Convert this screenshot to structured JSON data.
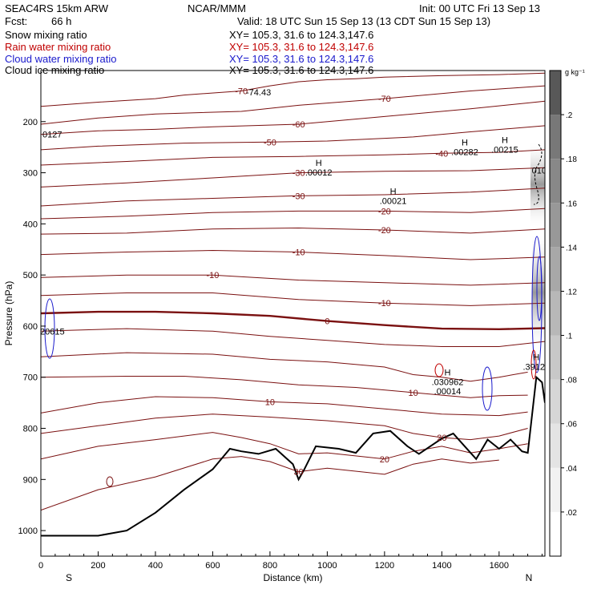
{
  "header": {
    "model": "SEAC4RS 15km ARW",
    "org": "NCAR/MMM",
    "init": "Init: 00 UTC Fri 13 Sep 13",
    "fcst_label": "Fcst:",
    "fcst_value": "66 h",
    "valid": "Valid: 18 UTC Sun 15 Sep 13 (13 CDT Sun 15 Sep 13)",
    "fields": [
      {
        "name": "Snow mixing ratio",
        "xy": "XY= 105.3, 31.6 to 124.3,147.6",
        "color": "#000000"
      },
      {
        "name": "Rain water mixing ratio",
        "xy": "XY= 105.3, 31.6 to 124.3,147.6",
        "color": "#c00000"
      },
      {
        "name": "Cloud water mixing ratio",
        "xy": "XY= 105.3, 31.6 to 124.3,147.6",
        "color": "#1a1acc"
      },
      {
        "name": "Cloud ice mixing ratio",
        "xy": "XY= 105.3, 31.6 to 124.3,147.6",
        "color": "#000000"
      }
    ]
  },
  "chart_data": {
    "type": "line",
    "xlabel": "Distance (km)",
    "ylabel": "Pressure (hPa)",
    "xlim": [
      0,
      1760
    ],
    "ylim": [
      1050,
      100
    ],
    "x_ticks": [
      0,
      200,
      400,
      600,
      800,
      1000,
      1200,
      1400,
      1600
    ],
    "y_ticks": [
      200,
      300,
      400,
      500,
      600,
      700,
      800,
      900,
      1000
    ],
    "endpoints": {
      "left": "S",
      "right": "N"
    },
    "colorbar": {
      "units": "g kg⁻¹",
      "ticks": [
        ".02",
        ".04",
        ".06",
        ".08",
        ".1",
        ".12",
        ".14",
        ".16",
        ".18",
        ".2"
      ],
      "colors": [
        "#ffffff",
        "#f2f2f2",
        "#e4e4e4",
        "#d6d6d6",
        "#c8c8c8",
        "#b8b8b8",
        "#a8a8a8",
        "#989898",
        "#888888",
        "#787878",
        "#585858"
      ]
    },
    "temperature_contours": [
      {
        "label": "-70",
        "points": [
          [
            0,
            170
          ],
          [
            200,
            162
          ],
          [
            400,
            155
          ],
          [
            500,
            148
          ],
          [
            700,
            140
          ],
          [
            800,
            130
          ],
          [
            900,
            122
          ],
          [
            1000,
            118
          ],
          [
            1100,
            116
          ],
          [
            1200,
            113
          ],
          [
            1400,
            110
          ],
          [
            1600,
            108
          ],
          [
            1760,
            105
          ]
        ]
      },
      {
        "label": "-70",
        "points": [
          [
            0,
            205
          ],
          [
            200,
            193
          ],
          [
            400,
            185
          ],
          [
            700,
            180
          ],
          [
            900,
            168
          ],
          [
            1200,
            155
          ],
          [
            1500,
            140
          ],
          [
            1760,
            130
          ]
        ]
      },
      {
        "label": "-60",
        "points": [
          [
            0,
            225
          ],
          [
            200,
            218
          ],
          [
            400,
            215
          ],
          [
            600,
            210
          ],
          [
            900,
            205
          ],
          [
            1200,
            190
          ],
          [
            1500,
            175
          ],
          [
            1760,
            160
          ]
        ]
      },
      {
        "label": "-50",
        "points": [
          [
            0,
            255
          ],
          [
            200,
            248
          ],
          [
            500,
            242
          ],
          [
            800,
            240
          ],
          [
            1000,
            238
          ],
          [
            1300,
            230
          ],
          [
            1500,
            220
          ],
          [
            1760,
            208
          ]
        ]
      },
      {
        "label": "-40",
        "points": [
          [
            0,
            285
          ],
          [
            300,
            278
          ],
          [
            600,
            270
          ],
          [
            900,
            268
          ],
          [
            1200,
            265
          ],
          [
            1400,
            262
          ],
          [
            1600,
            260
          ],
          [
            1760,
            255
          ]
        ]
      },
      {
        "label": "-30",
        "points": [
          [
            0,
            328
          ],
          [
            300,
            320
          ],
          [
            600,
            310
          ],
          [
            900,
            300
          ],
          [
            1200,
            297
          ],
          [
            1500,
            296
          ],
          [
            1760,
            290
          ]
        ]
      },
      {
        "label": "-30",
        "points": [
          [
            0,
            365
          ],
          [
            300,
            355
          ],
          [
            600,
            350
          ],
          [
            900,
            345
          ],
          [
            1200,
            343
          ],
          [
            1500,
            338
          ],
          [
            1760,
            330
          ]
        ]
      },
      {
        "label": "-20",
        "points": [
          [
            0,
            390
          ],
          [
            300,
            385
          ],
          [
            600,
            378
          ],
          [
            900,
            375
          ],
          [
            1200,
            375
          ],
          [
            1500,
            378
          ],
          [
            1760,
            370
          ]
        ]
      },
      {
        "label": "-20",
        "points": [
          [
            0,
            420
          ],
          [
            300,
            418
          ],
          [
            600,
            410
          ],
          [
            900,
            408
          ],
          [
            1200,
            412
          ],
          [
            1500,
            418
          ],
          [
            1760,
            410
          ]
        ]
      },
      {
        "label": "-10",
        "points": [
          [
            0,
            460
          ],
          [
            300,
            455
          ],
          [
            600,
            452
          ],
          [
            900,
            455
          ],
          [
            1200,
            462
          ],
          [
            1500,
            470
          ],
          [
            1760,
            465
          ]
        ]
      },
      {
        "label": "-10",
        "points": [
          [
            0,
            505
          ],
          [
            300,
            500
          ],
          [
            600,
            500
          ],
          [
            900,
            510
          ],
          [
            1200,
            515
          ],
          [
            1500,
            520
          ],
          [
            1760,
            515
          ]
        ]
      },
      {
        "label": "-10",
        "points": [
          [
            0,
            540
          ],
          [
            300,
            535
          ],
          [
            600,
            535
          ],
          [
            900,
            548
          ],
          [
            1200,
            555
          ],
          [
            1500,
            560
          ],
          [
            1760,
            555
          ]
        ]
      },
      {
        "label": "0",
        "bold": true,
        "points": [
          [
            0,
            575
          ],
          [
            200,
            572
          ],
          [
            400,
            572
          ],
          [
            600,
            575
          ],
          [
            800,
            580
          ],
          [
            1000,
            590
          ],
          [
            1200,
            598
          ],
          [
            1400,
            605
          ],
          [
            1600,
            606
          ],
          [
            1760,
            604
          ]
        ]
      },
      {
        "label": "",
        "points": [
          [
            0,
            610
          ],
          [
            300,
            605
          ],
          [
            600,
            610
          ],
          [
            800,
            620
          ],
          [
            1000,
            628
          ],
          [
            1200,
            636
          ],
          [
            1400,
            640
          ],
          [
            1600,
            640
          ],
          [
            1760,
            630
          ]
        ]
      },
      {
        "label": "",
        "points": [
          [
            0,
            660
          ],
          [
            300,
            652
          ],
          [
            600,
            655
          ],
          [
            800,
            665
          ],
          [
            1000,
            670
          ],
          [
            1200,
            680
          ],
          [
            1300,
            695
          ],
          [
            1400,
            700
          ],
          [
            1500,
            708
          ],
          [
            1600,
            700
          ],
          [
            1700,
            690
          ]
        ]
      },
      {
        "label": "10",
        "points": [
          [
            0,
            700
          ],
          [
            300,
            698
          ],
          [
            500,
            698
          ],
          [
            700,
            705
          ],
          [
            900,
            715
          ],
          [
            1100,
            720
          ],
          [
            1300,
            730
          ],
          [
            1400,
            735
          ],
          [
            1500,
            740
          ],
          [
            1600,
            736
          ],
          [
            1700,
            735
          ]
        ]
      },
      {
        "label": "10",
        "points": [
          [
            0,
            770
          ],
          [
            200,
            750
          ],
          [
            400,
            738
          ],
          [
            600,
            740
          ],
          [
            800,
            748
          ],
          [
            1000,
            752
          ],
          [
            1200,
            762
          ],
          [
            1400,
            772
          ],
          [
            1600,
            775
          ],
          [
            1700,
            768
          ]
        ]
      },
      {
        "label": "20",
        "points": [
          [
            0,
            810
          ],
          [
            200,
            795
          ],
          [
            400,
            780
          ],
          [
            600,
            772
          ],
          [
            800,
            778
          ],
          [
            1000,
            785
          ],
          [
            1200,
            795
          ],
          [
            1300,
            810
          ],
          [
            1400,
            818
          ],
          [
            1500,
            822
          ],
          [
            1600,
            815
          ],
          [
            1700,
            800
          ]
        ]
      },
      {
        "label": "20",
        "points": [
          [
            0,
            860
          ],
          [
            200,
            835
          ],
          [
            400,
            822
          ],
          [
            600,
            808
          ],
          [
            700,
            818
          ],
          [
            800,
            830
          ],
          [
            900,
            850
          ],
          [
            1000,
            848
          ],
          [
            1200,
            860
          ],
          [
            1300,
            845
          ],
          [
            1400,
            835
          ],
          [
            1500,
            848
          ],
          [
            1600,
            840
          ],
          [
            1700,
            830
          ]
        ]
      },
      {
        "label": "30",
        "points": [
          [
            0,
            960
          ],
          [
            200,
            920
          ],
          [
            400,
            895
          ],
          [
            600,
            860
          ],
          [
            700,
            855
          ],
          [
            800,
            865
          ],
          [
            900,
            885
          ],
          [
            1000,
            878
          ],
          [
            1200,
            890
          ],
          [
            1300,
            870
          ],
          [
            1400,
            860
          ],
          [
            1500,
            868
          ],
          [
            1600,
            862
          ]
        ]
      }
    ],
    "terrain": [
      [
        0,
        1010
      ],
      [
        200,
        1010
      ],
      [
        300,
        1000
      ],
      [
        400,
        965
      ],
      [
        500,
        920
      ],
      [
        600,
        880
      ],
      [
        660,
        840
      ],
      [
        700,
        845
      ],
      [
        760,
        850
      ],
      [
        820,
        840
      ],
      [
        880,
        870
      ],
      [
        900,
        900
      ],
      [
        920,
        880
      ],
      [
        960,
        835
      ],
      [
        1040,
        840
      ],
      [
        1100,
        848
      ],
      [
        1160,
        810
      ],
      [
        1220,
        805
      ],
      [
        1280,
        835
      ],
      [
        1320,
        850
      ],
      [
        1400,
        820
      ],
      [
        1440,
        810
      ],
      [
        1480,
        835
      ],
      [
        1520,
        860
      ],
      [
        1560,
        822
      ],
      [
        1600,
        840
      ],
      [
        1640,
        822
      ],
      [
        1680,
        845
      ],
      [
        1700,
        848
      ],
      [
        1730,
        700
      ],
      [
        1750,
        710
      ],
      [
        1760,
        750
      ]
    ],
    "highs": [
      {
        "x": 1480,
        "p": 250,
        "label": ".00282"
      },
      {
        "x": 1620,
        "p": 245,
        "label": ".00215"
      },
      {
        "x": 970,
        "p": 290,
        "label": ".00012"
      },
      {
        "x": 1230,
        "p": 345,
        "label": ".00021"
      },
      {
        "x": 1420,
        "p": 700,
        "label": ".030962"
      },
      {
        "x": 1730,
        "p": 670,
        "label": ".39129"
      }
    ],
    "annotations": [
      {
        "text": "-74.43",
        "x": 760,
        "p": 142
      },
      {
        "text": "0127",
        "x": 40,
        "p": 225
      },
      {
        "text": "20615",
        "x": 40,
        "p": 610
      },
      {
        "text": ".00014",
        "x": 1420,
        "p": 727
      },
      {
        "text": "010",
        "x": 1740,
        "p": 295
      }
    ]
  }
}
